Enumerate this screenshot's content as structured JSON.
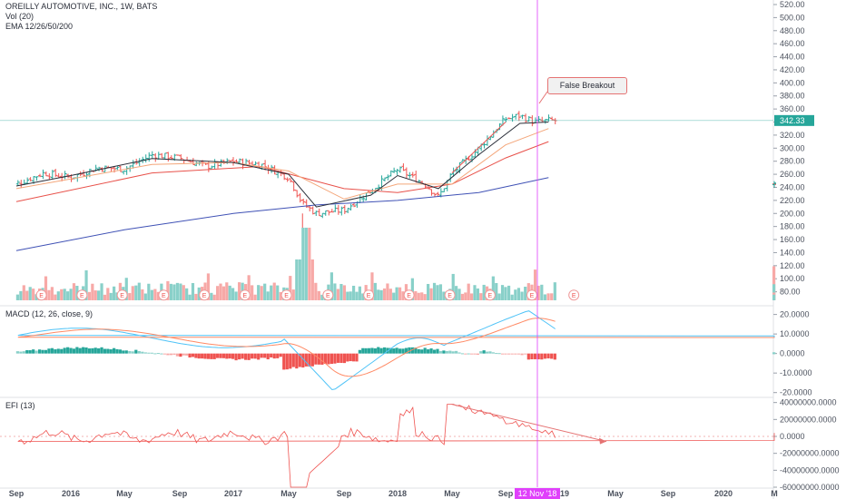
{
  "legend": {
    "title": "OREILLY AUTOMOTIVE, INC., 1W, BATS",
    "vol": "Vol (20)",
    "ema": "EMA 12/26/50/200",
    "macd": "MACD (12, 26, close, 9)",
    "efi": "EFI (13)"
  },
  "annotation": {
    "text": "False Breakout"
  },
  "crosshair": {
    "date_label": "12 Nov '18"
  },
  "colors": {
    "up": "#26a69a",
    "down": "#ef5350",
    "up_light": "#89d0c9",
    "down_light": "#f7a9a7",
    "ema12": "#2a2e39",
    "ema26": "#f4a67a",
    "ema50": "#e8514a",
    "ema200": "#3f51b5",
    "crosshair": "#e040fb",
    "last_price": "#26a69a"
  },
  "chart_data": [
    {
      "type": "candlestick",
      "title": "OREILLY AUTOMOTIVE, INC., 1W, BATS",
      "ylim": [
        60,
        520
      ],
      "yticks": [
        "520.00",
        "500.00",
        "480.00",
        "460.00",
        "440.00",
        "420.00",
        "400.00",
        "380.00",
        "360.00",
        "340.00",
        "320.00",
        "300.00",
        "280.00",
        "260.00",
        "240.00",
        "220.00",
        "200.00",
        "180.00",
        "160.00",
        "140.00",
        "120.00",
        "100.00",
        "80.00"
      ],
      "last_price": "342.33",
      "x_labels": [
        "Sep",
        "2016",
        "May",
        "Sep",
        "2017",
        "May",
        "Sep",
        "2018",
        "May",
        "Sep",
        "19",
        "May",
        "Sep",
        "2020",
        "M"
      ],
      "close_series": [
        {
          "date": "2015-09",
          "close": 245
        },
        {
          "date": "2015-11",
          "close": 262
        },
        {
          "date": "2016-01",
          "close": 255
        },
        {
          "date": "2016-03",
          "close": 270
        },
        {
          "date": "2016-05",
          "close": 268
        },
        {
          "date": "2016-07",
          "close": 290
        },
        {
          "date": "2016-09",
          "close": 285
        },
        {
          "date": "2016-11",
          "close": 272
        },
        {
          "date": "2017-01",
          "close": 280
        },
        {
          "date": "2017-03",
          "close": 275
        },
        {
          "date": "2017-05",
          "close": 255
        },
        {
          "date": "2017-06",
          "close": 215
        },
        {
          "date": "2017-07",
          "close": 200
        },
        {
          "date": "2017-09",
          "close": 205
        },
        {
          "date": "2017-11",
          "close": 235
        },
        {
          "date": "2018-01",
          "close": 268
        },
        {
          "date": "2018-03",
          "close": 245
        },
        {
          "date": "2018-04",
          "close": 225
        },
        {
          "date": "2018-05",
          "close": 262
        },
        {
          "date": "2018-07",
          "close": 300
        },
        {
          "date": "2018-09",
          "close": 345
        },
        {
          "date": "2018-10",
          "close": 350
        },
        {
          "date": "2018-11",
          "close": 340
        },
        {
          "date": "2018-12",
          "close": 342.33
        }
      ],
      "ema12": [
        {
          "date": "2015-09",
          "value": 242
        },
        {
          "date": "2016-01",
          "value": 258
        },
        {
          "date": "2016-07",
          "value": 284
        },
        {
          "date": "2017-01",
          "value": 278
        },
        {
          "date": "2017-05",
          "value": 260
        },
        {
          "date": "2017-07",
          "value": 210
        },
        {
          "date": "2017-11",
          "value": 228
        },
        {
          "date": "2018-01",
          "value": 258
        },
        {
          "date": "2018-04",
          "value": 238
        },
        {
          "date": "2018-07",
          "value": 290
        },
        {
          "date": "2018-10",
          "value": 338
        },
        {
          "date": "2018-12",
          "value": 340
        }
      ],
      "ema26": [
        {
          "date": "2015-09",
          "value": 238
        },
        {
          "date": "2016-07",
          "value": 275
        },
        {
          "date": "2017-01",
          "value": 278
        },
        {
          "date": "2017-05",
          "value": 265
        },
        {
          "date": "2017-09",
          "value": 222
        },
        {
          "date": "2018-01",
          "value": 245
        },
        {
          "date": "2018-05",
          "value": 245
        },
        {
          "date": "2018-09",
          "value": 305
        },
        {
          "date": "2018-12",
          "value": 330
        }
      ],
      "ema50": [
        {
          "date": "2015-09",
          "value": 218
        },
        {
          "date": "2016-07",
          "value": 262
        },
        {
          "date": "2017-03",
          "value": 272
        },
        {
          "date": "2017-09",
          "value": 238
        },
        {
          "date": "2018-01",
          "value": 232
        },
        {
          "date": "2018-05",
          "value": 245
        },
        {
          "date": "2018-09",
          "value": 285
        },
        {
          "date": "2018-12",
          "value": 310
        }
      ],
      "ema200": [
        {
          "date": "2015-09",
          "value": 143
        },
        {
          "date": "2016-05",
          "value": 175
        },
        {
          "date": "2017-01",
          "value": 200
        },
        {
          "date": "2017-07",
          "value": 213
        },
        {
          "date": "2018-01",
          "value": 220
        },
        {
          "date": "2018-07",
          "value": 232
        },
        {
          "date": "2018-12",
          "value": 255
        }
      ]
    },
    {
      "type": "bar",
      "title": "MACD (12, 26, close, 9)",
      "ylim": [
        -22,
        24
      ],
      "yticks": [
        "20.0000",
        "10.0000",
        "0.0000",
        "-10.0000",
        "-20.0000"
      ]
    },
    {
      "type": "line",
      "title": "EFI (13)",
      "ylim": [
        -60000000,
        45000000
      ],
      "yticks": [
        "40000000.0000",
        "20000000.0000",
        "0.0000",
        "-20000000.0000",
        "-40000000.0000",
        "-60000000.0000"
      ]
    }
  ]
}
